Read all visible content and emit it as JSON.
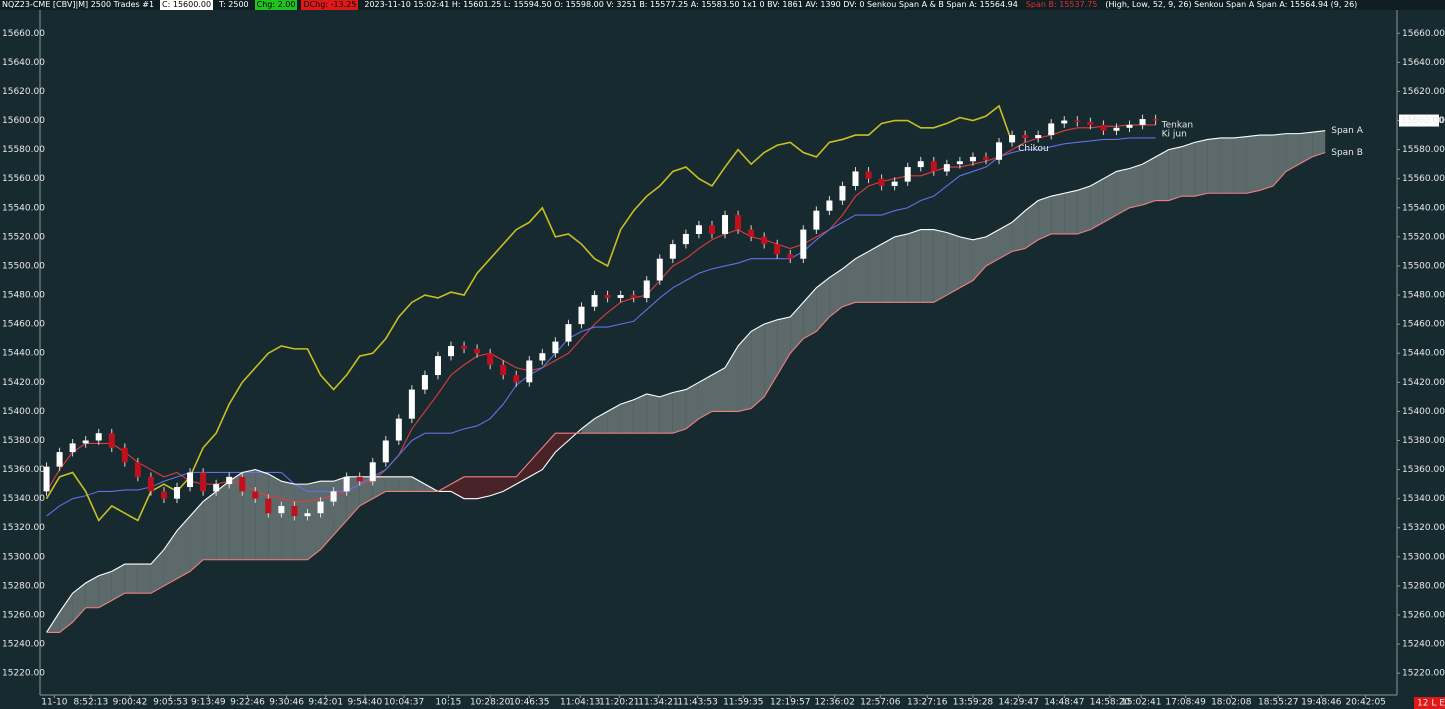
{
  "chart_data": {
    "type": "candlestick",
    "header": [
      {
        "text": "NQZ23-CME [CBV]|M]  2500 Trades  #1",
        "color": "#ffffff",
        "bg": "none"
      },
      {
        "text": "C: 15600.00",
        "color": "#000000",
        "bg": "#ffffff"
      },
      {
        "text": "T: 2500",
        "color": "#ffffff",
        "bg": "none"
      },
      {
        "text": "Chg: 2.00",
        "color": "#000000",
        "bg": "#1fc21f"
      },
      {
        "text": "DChg: -13.25",
        "color": "#000000",
        "bg": "#e01818"
      },
      {
        "text": "2023-11-10 15:02:41 H: 15601.25 L: 15594.50 O: 15598.00 V: 3251 B: 15577.25 A: 15583.50 1x1 0 BV: 1861 AV: 1390 DV: 0 Senkou Span A & B  Span A: 15564.94",
        "color": "#ffffff",
        "bg": "none"
      },
      {
        "text": "Span B: 15537.75",
        "color": "#e03030",
        "bg": "none"
      },
      {
        "text": "(High, Low, 52, 9, 26)  Senkou Span A  Span A: 15564.94  (9, 26)",
        "color": "#ffffff",
        "bg": "none"
      }
    ],
    "last_price_label": "15600.00",
    "corner_label": "12 L E",
    "up_color": "#ffffff",
    "down_color": "#c0101c",
    "cloud_colors": {
      "up": "#5d6a6c",
      "down": "#4a2329"
    },
    "xlim": [
      0,
      104
    ],
    "ylim": [
      15205,
      15676
    ],
    "xticks": [
      {
        "value": 1.1,
        "label": "11-10"
      },
      {
        "value": 3.9,
        "label": "8:52:13"
      },
      {
        "value": 6.9,
        "label": "9:00:42"
      },
      {
        "value": 10,
        "label": "9:05:53"
      },
      {
        "value": 12.9,
        "label": "9:13:49"
      },
      {
        "value": 15.9,
        "label": "9:22:46"
      },
      {
        "value": 18.9,
        "label": "9:30:46"
      },
      {
        "value": 21.9,
        "label": "9:42:01"
      },
      {
        "value": 24.9,
        "label": "9:54:40"
      },
      {
        "value": 27.9,
        "label": "10:04:37"
      },
      {
        "value": 31.3,
        "label": "10:15"
      },
      {
        "value": 34.5,
        "label": "10:28:20"
      },
      {
        "value": 37.5,
        "label": "10:46:35"
      },
      {
        "value": 41.4,
        "label": "11:04:13"
      },
      {
        "value": 44.4,
        "label": "11:20:21"
      },
      {
        "value": 47.4,
        "label": "11:34:21"
      },
      {
        "value": 50.4,
        "label": "11:43:53"
      },
      {
        "value": 53.9,
        "label": "11:59:35"
      },
      {
        "value": 57.5,
        "label": "12:19:57"
      },
      {
        "value": 60.9,
        "label": "12:36:02"
      },
      {
        "value": 64.4,
        "label": "12:57:06"
      },
      {
        "value": 68,
        "label": "13:27:16"
      },
      {
        "value": 71.5,
        "label": "13:59:28"
      },
      {
        "value": 75,
        "label": "14:29:47"
      },
      {
        "value": 78.5,
        "label": "14:48:47"
      },
      {
        "value": 82,
        "label": "14:58:20"
      },
      {
        "value": 84.4,
        "label": "15:02:41"
      },
      {
        "value": 87.8,
        "label": "17:08:49"
      },
      {
        "value": 91.3,
        "label": "18:02:08"
      },
      {
        "value": 94.9,
        "label": "18:55:27"
      },
      {
        "value": 98.2,
        "label": "19:48:46"
      },
      {
        "value": 101.6,
        "label": "20:42:05"
      }
    ],
    "yticks": [
      {
        "value": 15220,
        "label": "15220.00"
      },
      {
        "value": 15240,
        "label": "15240.00"
      },
      {
        "value": 15260,
        "label": "15260.00"
      },
      {
        "value": 15280,
        "label": "15280.00"
      },
      {
        "value": 15300,
        "label": "15300.00"
      },
      {
        "value": 15320,
        "label": "15320.00"
      },
      {
        "value": 15340,
        "label": "15340.00"
      },
      {
        "value": 15360,
        "label": "15360.00"
      },
      {
        "value": 15380,
        "label": "15380.00"
      },
      {
        "value": 15400,
        "label": "15400.00"
      },
      {
        "value": 15420,
        "label": "15420.00"
      },
      {
        "value": 15440,
        "label": "15440.00"
      },
      {
        "value": 15460,
        "label": "15460.00"
      },
      {
        "value": 15480,
        "label": "15480.00"
      },
      {
        "value": 15500,
        "label": "15500.00"
      },
      {
        "value": 15520,
        "label": "15520.00"
      },
      {
        "value": 15540,
        "label": "15540.00"
      },
      {
        "value": 15560,
        "label": "15560.00"
      },
      {
        "value": 15580,
        "label": "15580.00"
      },
      {
        "value": 15600,
        "label": "15600.00"
      },
      {
        "value": 15620,
        "label": "15620.00"
      },
      {
        "value": 15640,
        "label": "15640.00"
      },
      {
        "value": 15660,
        "label": "15660.00"
      }
    ],
    "ohlc": [
      [
        15345,
        15365,
        15342,
        15362
      ],
      [
        15362,
        15375,
        15359,
        15372
      ],
      [
        15372,
        15381,
        15369,
        15378
      ],
      [
        15378,
        15383,
        15375,
        15380
      ],
      [
        15380,
        15388,
        15377,
        15385
      ],
      [
        15385,
        15388,
        15372,
        15375
      ],
      [
        15375,
        15378,
        15362,
        15365
      ],
      [
        15365,
        15368,
        15352,
        15355
      ],
      [
        15355,
        15358,
        15342,
        15345
      ],
      [
        15345,
        15348,
        15337,
        15340
      ],
      [
        15340,
        15351,
        15337,
        15348
      ],
      [
        15348,
        15361,
        15345,
        15358
      ],
      [
        15358,
        15361,
        15342,
        15345
      ],
      [
        15345,
        15353,
        15342,
        15350
      ],
      [
        15350,
        15358,
        15347,
        15355
      ],
      [
        15355,
        15358,
        15342,
        15345
      ],
      [
        15345,
        15348,
        15337,
        15340
      ],
      [
        15340,
        15343,
        15327,
        15330
      ],
      [
        15330,
        15338,
        15327,
        15335
      ],
      [
        15335,
        15338,
        15325,
        15328
      ],
      [
        15328,
        15333,
        15325,
        15330
      ],
      [
        15330,
        15341,
        15327,
        15338
      ],
      [
        15338,
        15348,
        15335,
        15345
      ],
      [
        15345,
        15358,
        15342,
        15355
      ],
      [
        15355,
        15358,
        15349,
        15352
      ],
      [
        15352,
        15368,
        15349,
        15365
      ],
      [
        15365,
        15383,
        15362,
        15380
      ],
      [
        15380,
        15398,
        15377,
        15395
      ],
      [
        15395,
        15418,
        15392,
        15415
      ],
      [
        15415,
        15428,
        15412,
        15425
      ],
      [
        15425,
        15441,
        15422,
        15438
      ],
      [
        15438,
        15448,
        15435,
        15445
      ],
      [
        15445,
        15448,
        15440,
        15443
      ],
      [
        15443,
        15446,
        15437,
        15440
      ],
      [
        15440,
        15443,
        15429,
        15432
      ],
      [
        15432,
        15435,
        15422,
        15425
      ],
      [
        15425,
        15428,
        15417,
        15420
      ],
      [
        15420,
        15438,
        15417,
        15435
      ],
      [
        15435,
        15443,
        15432,
        15440
      ],
      [
        15440,
        15451,
        15437,
        15448
      ],
      [
        15448,
        15463,
        15445,
        15460
      ],
      [
        15460,
        15475,
        15457,
        15472
      ],
      [
        15472,
        15483,
        15469,
        15480
      ],
      [
        15480,
        15483,
        15475,
        15478
      ],
      [
        15478,
        15483,
        15475,
        15480
      ],
      [
        15480,
        15483,
        15475,
        15478
      ],
      [
        15478,
        15493,
        15475,
        15490
      ],
      [
        15490,
        15508,
        15487,
        15505
      ],
      [
        15505,
        15518,
        15502,
        15515
      ],
      [
        15515,
        15525,
        15512,
        15522
      ],
      [
        15522,
        15531,
        15519,
        15528
      ],
      [
        15528,
        15531,
        15519,
        15522
      ],
      [
        15522,
        15538,
        15519,
        15535
      ],
      [
        15535,
        15538,
        15522,
        15525
      ],
      [
        15525,
        15528,
        15517,
        15520
      ],
      [
        15520,
        15523,
        15512,
        15515
      ],
      [
        15515,
        15518,
        15505,
        15508
      ],
      [
        15508,
        15511,
        15502,
        15505
      ],
      [
        15505,
        15528,
        15502,
        15525
      ],
      [
        15525,
        15541,
        15522,
        15538
      ],
      [
        15538,
        15548,
        15535,
        15545
      ],
      [
        15545,
        15558,
        15542,
        15555
      ],
      [
        15555,
        15568,
        15552,
        15565
      ],
      [
        15565,
        15568,
        15557,
        15560
      ],
      [
        15560,
        15563,
        15552,
        15555
      ],
      [
        15555,
        15561,
        15552,
        15558
      ],
      [
        15558,
        15571,
        15555,
        15568
      ],
      [
        15568,
        15575,
        15565,
        15572
      ],
      [
        15572,
        15575,
        15562,
        15565
      ],
      [
        15565,
        15573,
        15562,
        15570
      ],
      [
        15570,
        15575,
        15567,
        15572
      ],
      [
        15572,
        15578,
        15569,
        15575
      ],
      [
        15575,
        15578,
        15570,
        15573
      ],
      [
        15573,
        15588,
        15570,
        15585
      ],
      [
        15585,
        15593,
        15582,
        15590
      ],
      [
        15590,
        15593,
        15585,
        15588
      ],
      [
        15588,
        15593,
        15585,
        15590
      ],
      [
        15590,
        15601,
        15587,
        15598
      ],
      [
        15598,
        15603,
        15595,
        15600
      ],
      [
        15600,
        15603,
        15596,
        15599
      ],
      [
        15599,
        15602,
        15594,
        15597
      ],
      [
        15597,
        15600,
        15590,
        15593
      ],
      [
        15593,
        15598,
        15590,
        15595
      ],
      [
        15595,
        15600,
        15592,
        15597
      ],
      [
        15597,
        15604,
        15594,
        15601
      ],
      [
        15601,
        15604,
        15597,
        15600
      ]
    ],
    "series": [
      {
        "name": "Tenkan",
        "color": "#e03c3c",
        "values": [
          15345,
          15360,
          15372,
          15378,
          15378,
          15378,
          15372,
          15365,
          15360,
          15355,
          15358,
          15352,
          15350,
          15350,
          15352,
          15350,
          15345,
          15342,
          15340,
          15338,
          15338,
          15340,
          15342,
          15345,
          15350,
          15352,
          15360,
          15370,
          15388,
          15400,
          15412,
          15425,
          15432,
          15438,
          15440,
          15435,
          15430,
          15428,
          15430,
          15435,
          15440,
          15450,
          15460,
          15468,
          15475,
          15478,
          15480,
          15490,
          15500,
          15505,
          15512,
          15518,
          15522,
          15525,
          15520,
          15518,
          15515,
          15512,
          15515,
          15520,
          15525,
          15535,
          15548,
          15555,
          15558,
          15560,
          15562,
          15562,
          15565,
          15568,
          15568,
          15570,
          15572,
          15575,
          15580,
          15585,
          15588,
          15590,
          15593,
          15595,
          15595,
          15596,
          15596,
          15597,
          15597,
          15597
        ]
      },
      {
        "name": "Ki jun",
        "color": "#6070e8",
        "values": [
          15328,
          15335,
          15340,
          15342,
          15345,
          15345,
          15346,
          15346,
          15348,
          15352,
          15355,
          15358,
          15358,
          15358,
          15358,
          15358,
          15358,
          15358,
          15358,
          15350,
          15345,
          15345,
          15345,
          15345,
          15350,
          15355,
          15360,
          15370,
          15380,
          15385,
          15385,
          15385,
          15388,
          15390,
          15395,
          15405,
          15418,
          15425,
          15430,
          15440,
          15450,
          15455,
          15458,
          15458,
          15460,
          15462,
          15470,
          15478,
          15485,
          15490,
          15495,
          15498,
          15500,
          15502,
          15505,
          15505,
          15505,
          15505,
          15510,
          15518,
          15525,
          15530,
          15535,
          15535,
          15535,
          15538,
          15540,
          15545,
          15548,
          15555,
          15562,
          15565,
          15568,
          15575,
          15578,
          15580,
          15580,
          15582,
          15584,
          15585,
          15586,
          15587,
          15587,
          15588,
          15588,
          15588
        ]
      },
      {
        "name": "Chikou",
        "color": "#c8c020",
        "values": [
          15340,
          15355,
          15358,
          15345,
          15325,
          15335,
          15330,
          15325,
          15345,
          15350,
          15345,
          15355,
          15375,
          15385,
          15405,
          15420,
          15430,
          15440,
          15445,
          15443,
          15443,
          15425,
          15415,
          15425,
          15438,
          15440,
          15450,
          15465,
          15475,
          15480,
          15478,
          15482,
          15480,
          15495,
          15505,
          15515,
          15525,
          15530,
          15540,
          15520,
          15522,
          15515,
          15505,
          15500,
          15525,
          15538,
          15548,
          15555,
          15565,
          15568,
          15560,
          15555,
          15568,
          15580,
          15570,
          15578,
          15583,
          15585,
          15578,
          15575,
          15585,
          15587,
          15590,
          15590,
          15598,
          15600,
          15600,
          15595,
          15595,
          15598,
          15602,
          15600,
          15603,
          15610,
          15585
        ]
      },
      {
        "name": "Span A",
        "color": "#ffffff",
        "values": [
          15248,
          15262,
          15275,
          15282,
          15287,
          15290,
          15295,
          15295,
          15295,
          15305,
          15318,
          15328,
          15338,
          15345,
          15352,
          15358,
          15360,
          15357,
          15352,
          15350,
          15350,
          15352,
          15352,
          15355,
          15355,
          15355,
          15355,
          15355,
          15355,
          15350,
          15345,
          15345,
          15340,
          15340,
          15342,
          15345,
          15350,
          15355,
          15360,
          15372,
          15380,
          15388,
          15395,
          15400,
          15405,
          15408,
          15412,
          15410,
          15413,
          15415,
          15420,
          15425,
          15430,
          15445,
          15455,
          15460,
          15463,
          15465,
          15475,
          15485,
          15492,
          15498,
          15505,
          15510,
          15515,
          15520,
          15522,
          15525,
          15525,
          15523,
          15520,
          15518,
          15520,
          15525,
          15530,
          15538,
          15545,
          15548,
          15550,
          15552,
          15555,
          15560,
          15565,
          15567,
          15570,
          15575,
          15580,
          15582,
          15585,
          15587,
          15588,
          15588,
          15589,
          15590,
          15590,
          15591,
          15591,
          15592,
          15593
        ]
      },
      {
        "name": "Span B",
        "color": "#f08080",
        "values": [
          15248,
          15248,
          15255,
          15265,
          15265,
          15270,
          15275,
          15275,
          15275,
          15280,
          15285,
          15290,
          15298,
          15298,
          15298,
          15298,
          15298,
          15298,
          15298,
          15298,
          15298,
          15305,
          15315,
          15325,
          15335,
          15340,
          15345,
          15345,
          15345,
          15345,
          15345,
          15350,
          15355,
          15355,
          15355,
          15355,
          15355,
          15365,
          15375,
          15385,
          15385,
          15385,
          15385,
          15385,
          15385,
          15385,
          15385,
          15385,
          15385,
          15388,
          15395,
          15400,
          15400,
          15400,
          15402,
          15410,
          15425,
          15440,
          15450,
          15455,
          15465,
          15472,
          15475,
          15475,
          15475,
          15475,
          15475,
          15475,
          15475,
          15480,
          15485,
          15490,
          15500,
          15505,
          15510,
          15512,
          15518,
          15522,
          15522,
          15522,
          15525,
          15530,
          15535,
          15540,
          15542,
          15545,
          15545,
          15548,
          15548,
          15550,
          15550,
          15550,
          15550,
          15552,
          15555,
          15565,
          15570,
          15575,
          15578
        ]
      }
    ]
  }
}
